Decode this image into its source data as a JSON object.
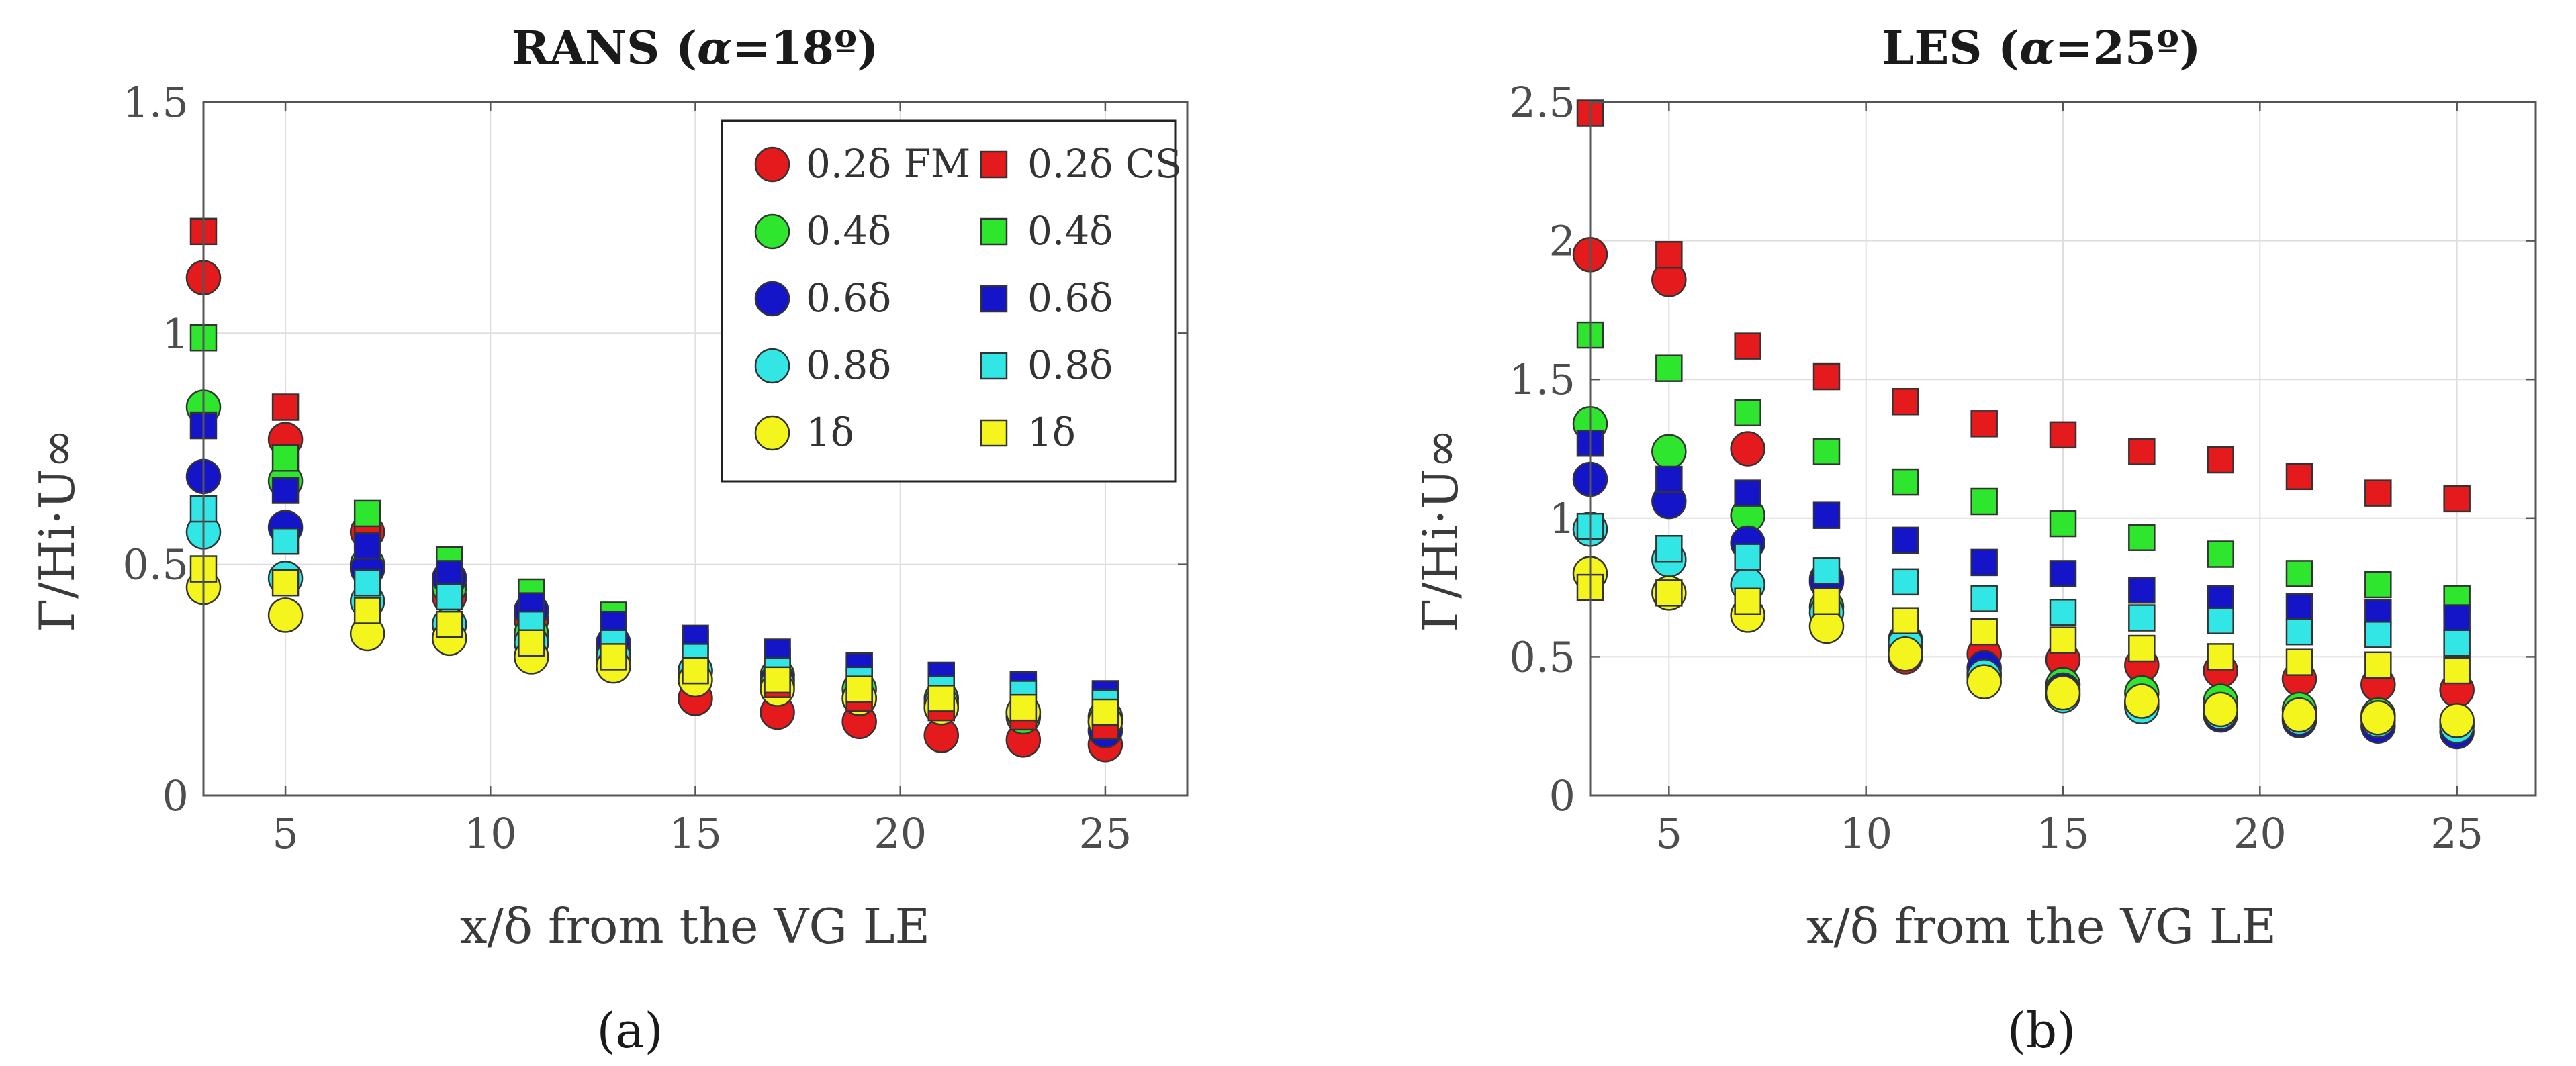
{
  "colors": {
    "red": "#e41a1c",
    "green": "#2ee62e",
    "blue": "#1414c8",
    "cyan": "#33e6e6",
    "yellow": "#f5f51e",
    "edge": "#333333",
    "grid": "#dedede",
    "axis": "#555555"
  },
  "chart_data": [
    {
      "type": "scatter",
      "panel": "(a)",
      "panel_letter": "a",
      "title": "RANS (α=18º)",
      "title_parts": {
        "before": "RANS (",
        "symbol": "α",
        "after": "=18º)"
      },
      "xlabel": "x/δ from the VG LE",
      "ylabel": "Γ/Hi·U∞",
      "xlim": [
        3,
        27
      ],
      "ylim": [
        0,
        1.5
      ],
      "xticks": [
        5,
        10,
        15,
        20,
        25
      ],
      "yticks": [
        0,
        0.5,
        1,
        1.5
      ],
      "ytick_labels": [
        "0",
        "0.5",
        "1",
        "1.5"
      ],
      "grid": true,
      "legend": "top-right",
      "x": [
        3,
        5,
        7,
        9,
        11,
        13,
        15,
        17,
        19,
        21,
        23,
        25
      ],
      "series": [
        {
          "name": "0.2δ FM",
          "marker": "circle",
          "color": "red",
          "values": [
            1.12,
            0.77,
            0.57,
            0.43,
            0.38,
            0.3,
            0.21,
            0.18,
            0.16,
            0.13,
            0.12,
            0.11
          ]
        },
        {
          "name": "0.4δ",
          "marker": "circle",
          "color": "green",
          "values": [
            0.84,
            0.68,
            0.5,
            0.45,
            0.35,
            0.32,
            0.27,
            0.26,
            0.23,
            0.21,
            0.17,
            0.17
          ]
        },
        {
          "name": "0.6δ",
          "marker": "circle",
          "color": "blue",
          "values": [
            0.69,
            0.58,
            0.49,
            0.47,
            0.4,
            0.33,
            0.27,
            0.25,
            0.21,
            0.19,
            0.18,
            0.14
          ]
        },
        {
          "name": "0.8δ",
          "marker": "circle",
          "color": "cyan",
          "values": [
            0.57,
            0.47,
            0.42,
            0.37,
            0.33,
            0.3,
            0.27,
            0.24,
            0.21,
            0.2,
            0.18,
            0.16
          ]
        },
        {
          "name": "1δ",
          "marker": "circle",
          "color": "yellow",
          "values": [
            0.45,
            0.39,
            0.35,
            0.34,
            0.3,
            0.28,
            0.25,
            0.23,
            0.21,
            0.19,
            0.18,
            0.16
          ]
        },
        {
          "name": "0.2δ CS",
          "marker": "square",
          "color": "red",
          "values": [
            1.22,
            0.84,
            0.56,
            0.45,
            0.4,
            0.35,
            0.27,
            0.24,
            0.21,
            0.19,
            0.17,
            0.15
          ]
        },
        {
          "name": "0.4δ",
          "marker": "square",
          "color": "green",
          "values": [
            0.99,
            0.73,
            0.61,
            0.51,
            0.44,
            0.39,
            0.33,
            0.29,
            0.27,
            0.25,
            0.23,
            0.21
          ]
        },
        {
          "name": "0.6δ",
          "marker": "square",
          "color": "blue",
          "values": [
            0.8,
            0.66,
            0.54,
            0.48,
            0.41,
            0.37,
            0.34,
            0.31,
            0.28,
            0.26,
            0.24,
            0.22
          ]
        },
        {
          "name": "0.8δ",
          "marker": "square",
          "color": "cyan",
          "values": [
            0.62,
            0.55,
            0.46,
            0.43,
            0.37,
            0.33,
            0.3,
            0.27,
            0.25,
            0.23,
            0.22,
            0.2
          ]
        },
        {
          "name": "1δ",
          "marker": "square",
          "color": "yellow",
          "values": [
            0.49,
            0.46,
            0.4,
            0.37,
            0.33,
            0.3,
            0.27,
            0.25,
            0.23,
            0.21,
            0.19,
            0.18
          ]
        }
      ],
      "legend_layout": {
        "rows": [
          [
            0,
            5
          ],
          [
            1,
            6
          ],
          [
            2,
            7
          ],
          [
            3,
            8
          ],
          [
            4,
            9
          ]
        ]
      }
    },
    {
      "type": "scatter",
      "panel": "(b)",
      "panel_letter": "b",
      "title": "LES (α=25º)",
      "title_parts": {
        "before": "LES (",
        "symbol": "α",
        "after": "=25º)"
      },
      "xlabel": "x/δ from the VG LE",
      "ylabel": "Γ/Hi·U∞",
      "xlim": [
        3,
        27
      ],
      "ylim": [
        0,
        2.5
      ],
      "xticks": [
        5,
        10,
        15,
        20,
        25
      ],
      "yticks": [
        0,
        0.5,
        1,
        1.5,
        2,
        2.5
      ],
      "ytick_labels": [
        "0",
        "0.5",
        "1",
        "1.5",
        "2",
        "2.5"
      ],
      "grid": true,
      "x": [
        3,
        5,
        7,
        9,
        11,
        13,
        15,
        17,
        19,
        21,
        23,
        25
      ],
      "series": [
        {
          "name": "0.2δ FM",
          "marker": "circle",
          "color": "red",
          "values": [
            1.95,
            1.86,
            1.25,
            0.78,
            0.5,
            0.51,
            0.49,
            0.47,
            0.45,
            0.42,
            0.4,
            0.38
          ]
        },
        {
          "name": "0.4δ",
          "marker": "circle",
          "color": "green",
          "values": [
            1.34,
            1.24,
            1.01,
            0.68,
            0.52,
            0.44,
            0.4,
            0.37,
            0.34,
            0.31,
            0.29,
            0.26
          ]
        },
        {
          "name": "0.6δ",
          "marker": "circle",
          "color": "blue",
          "values": [
            1.14,
            1.06,
            0.91,
            0.77,
            0.56,
            0.46,
            0.38,
            0.33,
            0.29,
            0.27,
            0.25,
            0.23
          ]
        },
        {
          "name": "0.8δ",
          "marker": "circle",
          "color": "cyan",
          "values": [
            0.96,
            0.85,
            0.76,
            0.66,
            0.55,
            0.43,
            0.36,
            0.32,
            0.3,
            0.28,
            0.27,
            0.25
          ]
        },
        {
          "name": "1δ",
          "marker": "circle",
          "color": "yellow",
          "values": [
            0.8,
            0.73,
            0.65,
            0.61,
            0.51,
            0.41,
            0.37,
            0.34,
            0.31,
            0.29,
            0.28,
            0.27
          ]
        },
        {
          "name": "0.2δ CS",
          "marker": "square",
          "color": "red",
          "values": [
            2.46,
            1.95,
            1.62,
            1.51,
            1.42,
            1.34,
            1.3,
            1.24,
            1.21,
            1.15,
            1.09,
            1.07
          ]
        },
        {
          "name": "0.4δ",
          "marker": "square",
          "color": "green",
          "values": [
            1.66,
            1.54,
            1.38,
            1.24,
            1.13,
            1.06,
            0.98,
            0.93,
            0.87,
            0.8,
            0.76,
            0.71
          ]
        },
        {
          "name": "0.6δ",
          "marker": "square",
          "color": "blue",
          "values": [
            1.27,
            1.14,
            1.09,
            1.01,
            0.92,
            0.84,
            0.8,
            0.74,
            0.71,
            0.68,
            0.66,
            0.64
          ]
        },
        {
          "name": "0.8δ",
          "marker": "square",
          "color": "cyan",
          "values": [
            0.97,
            0.89,
            0.86,
            0.81,
            0.77,
            0.71,
            0.66,
            0.64,
            0.63,
            0.59,
            0.58,
            0.55
          ]
        },
        {
          "name": "1δ",
          "marker": "square",
          "color": "yellow",
          "values": [
            0.75,
            0.73,
            0.7,
            0.7,
            0.63,
            0.59,
            0.56,
            0.53,
            0.5,
            0.48,
            0.47,
            0.45
          ]
        }
      ]
    }
  ]
}
